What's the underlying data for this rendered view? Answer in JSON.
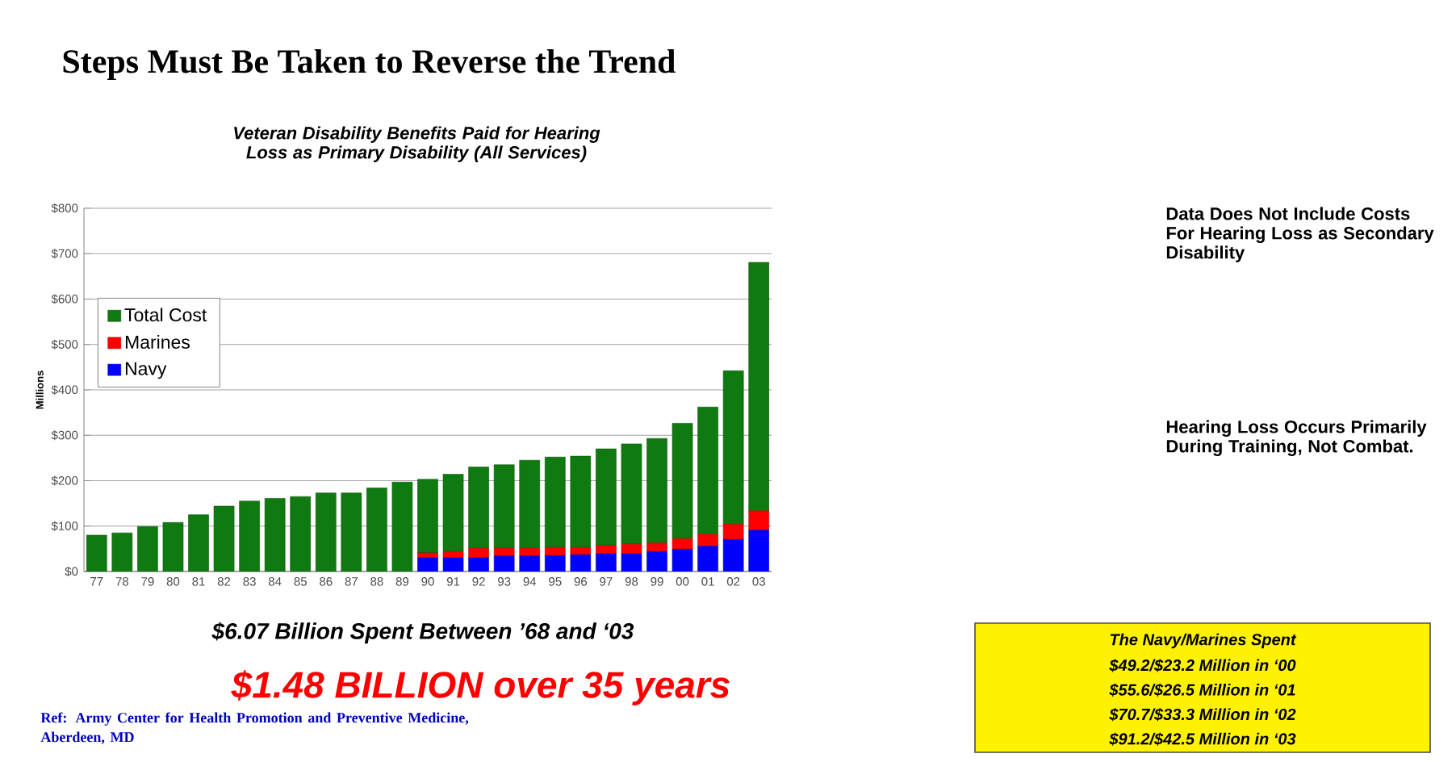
{
  "chart_data": {
    "type": "bar",
    "stacked": true,
    "title": "Steps Must Be Taken to Reverse the Trend",
    "subtitle": "Veteran Disability Benefits Paid for Hearing Loss as Primary Disability (All Services)",
    "ylabel": "Millions",
    "categories": [
      "77",
      "78",
      "79",
      "80",
      "81",
      "82",
      "83",
      "84",
      "85",
      "86",
      "87",
      "88",
      "89",
      "90",
      "91",
      "92",
      "93",
      "94",
      "95",
      "96",
      "97",
      "98",
      "99",
      "00",
      "01",
      "02",
      "03"
    ],
    "series": [
      {
        "name": "Navy",
        "color": "#0000ff",
        "values": [
          null,
          null,
          null,
          null,
          null,
          null,
          null,
          null,
          null,
          null,
          null,
          null,
          null,
          30,
          30,
          30,
          34,
          34,
          35,
          37,
          39,
          39,
          44,
          49.2,
          55.6,
          70.7,
          91.2
        ]
      },
      {
        "name": "Marines",
        "color": "#ff0000",
        "values": [
          null,
          null,
          null,
          null,
          null,
          null,
          null,
          null,
          null,
          null,
          null,
          null,
          null,
          11,
          14,
          21,
          17,
          17,
          18,
          16,
          19,
          21,
          19,
          23.2,
          26.5,
          33.3,
          42.5
        ]
      },
      {
        "name": "Total  Cost",
        "color": "#0f7a0f",
        "values": [
          80,
          85,
          99,
          108,
          125,
          144,
          155,
          161,
          165,
          173,
          173,
          184,
          197,
          162,
          170,
          179,
          184,
          194,
          199,
          201,
          212,
          221,
          230,
          254,
          280,
          338,
          547
        ]
      }
    ],
    "ylim": [
      0,
      800
    ],
    "yticks": [
      {
        "value": 0,
        "label": "$0"
      },
      {
        "value": 100,
        "label": "$100"
      },
      {
        "value": 200,
        "label": "$200"
      },
      {
        "value": 300,
        "label": "$300"
      },
      {
        "value": 400,
        "label": "$400"
      },
      {
        "value": 500,
        "label": "$500"
      },
      {
        "value": 600,
        "label": "$600"
      },
      {
        "value": 700,
        "label": "$700"
      },
      {
        "value": 800,
        "label": "$800"
      }
    ],
    "grid": "y",
    "legend": "left",
    "annotations": [
      "Data Does Not Include Costs For Hearing Loss as Secondary Disability",
      "Hearing Loss Occurs Primarily During Training, Not Combat.",
      "$6.07 Billion Spent Between ’68 and ‘03",
      "$1.48 BILLION over 35 years",
      "The Navy/Marines Spent",
      "$49.2/$23.2 Million in ‘00",
      "$55.6/$26.5 Million in ‘01",
      "$70.7/$33.3 Million in ‘02",
      "$91.2/$42.5 Million in ‘03",
      "Ref: Army Center for Health Promotion and Preventive Medicine, Aberdeen, MD"
    ]
  }
}
